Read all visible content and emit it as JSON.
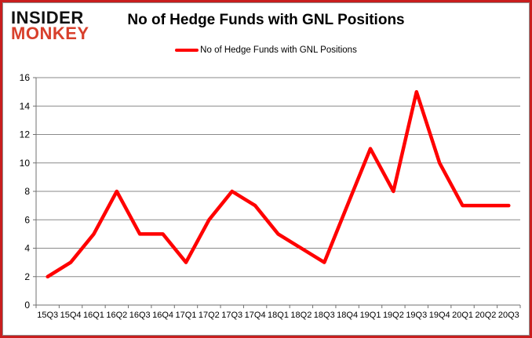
{
  "logo": {
    "line1": "INSIDER",
    "line2": "MONKEY"
  },
  "title": "No of Hedge Funds with GNL Positions",
  "legend": {
    "label": "No of Hedge Funds with GNL Positions"
  },
  "colors": {
    "line": "#ff0000",
    "grid": "#8a8a8a",
    "axis": "#707070",
    "text": "#000000",
    "logo_black": "#111111",
    "logo_red": "#d8402c",
    "frame_border": "#c81e1e",
    "inner_border": "#8f8f8f"
  },
  "chart_data": {
    "type": "line",
    "title": "No of Hedge Funds with GNL Positions",
    "xlabel": "",
    "ylabel": "",
    "legend_position": "top-center",
    "grid": "horizontal",
    "ylim": [
      0,
      16
    ],
    "ytick_step": 2,
    "categories": [
      "15Q3",
      "15Q4",
      "16Q1",
      "16Q2",
      "16Q3",
      "16Q4",
      "17Q1",
      "17Q2",
      "17Q3",
      "17Q4",
      "18Q1",
      "18Q2",
      "18Q3",
      "18Q4",
      "19Q1",
      "19Q2",
      "19Q3",
      "19Q4",
      "20Q1",
      "20Q2",
      "20Q3"
    ],
    "series": [
      {
        "name": "No of Hedge Funds with GNL Positions",
        "values": [
          2,
          3,
          5,
          8,
          5,
          5,
          3,
          6,
          8,
          7,
          5,
          4,
          3,
          7,
          11,
          8,
          15,
          10,
          7,
          7,
          7
        ]
      }
    ]
  }
}
